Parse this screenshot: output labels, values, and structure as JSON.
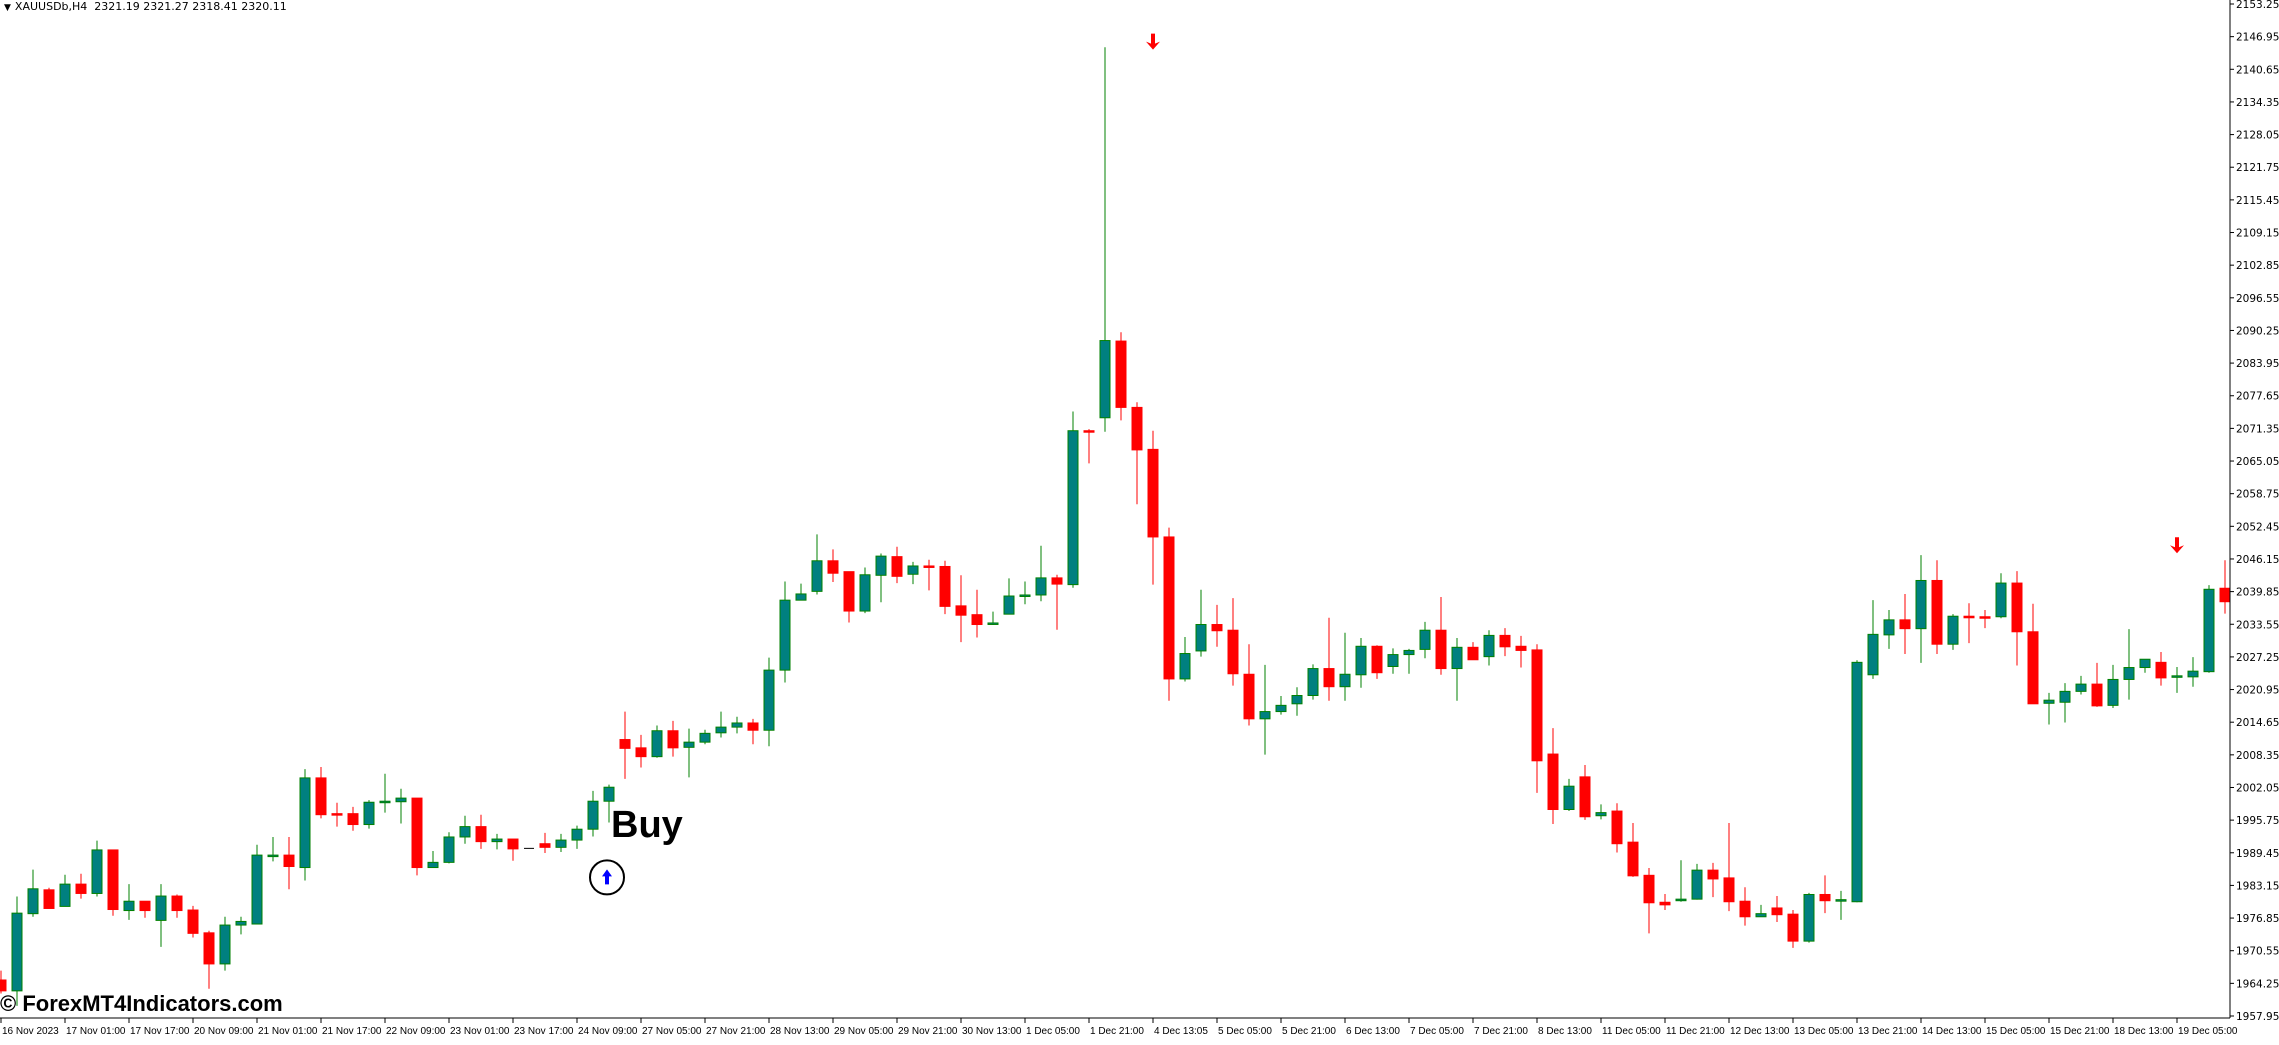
{
  "header": {
    "symbol": "XAUUSDb,H4",
    "ohlc": "2321.19 2321.27 2318.41 2320.11"
  },
  "watermark": "© ForexMT4Indicators.com",
  "buy_label": "Buy",
  "colors": {
    "bull_body": "#008080",
    "bull_outline": "#008000",
    "bear": "#ff0000",
    "doji": "#000000",
    "sell_arrow": "#ff0000",
    "buy_arrow": "#0000ff"
  },
  "chart_data": {
    "type": "candlestick",
    "symbol": "XAUUSDb",
    "timeframe": "H4",
    "ylim": [
      1957.95,
      2153.25
    ],
    "price_ticks": [
      "2153.25",
      "2146.95",
      "2140.65",
      "2134.35",
      "2128.05",
      "2121.75",
      "2115.45",
      "2109.15",
      "2102.85",
      "2096.55",
      "2090.25",
      "2083.95",
      "2077.65",
      "2071.35",
      "2065.05",
      "2058.75",
      "2052.45",
      "2046.15",
      "2039.85",
      "2033.55",
      "2027.25",
      "2020.95",
      "2014.65",
      "2008.35",
      "2002.05",
      "1995.75",
      "1989.45",
      "1983.15",
      "1976.85",
      "1970.55",
      "1964.25",
      "1957.95"
    ],
    "time_labels": [
      "16 Nov 2023",
      "17 Nov 01:00",
      "17 Nov 17:00",
      "20 Nov 09:00",
      "21 Nov 01:00",
      "21 Nov 17:00",
      "22 Nov 09:00",
      "23 Nov 01:00",
      "23 Nov 17:00",
      "24 Nov 09:00",
      "27 Nov 05:00",
      "27 Nov 21:00",
      "28 Nov 13:00",
      "29 Nov 05:00",
      "29 Nov 21:00",
      "30 Nov 13:00",
      "1 Dec 05:00",
      "1 Dec 21:00",
      "4 Dec 13:05",
      "5 Dec 05:00",
      "5 Dec 21:00",
      "6 Dec 13:00",
      "7 Dec 05:00",
      "7 Dec 21:00",
      "8 Dec 13:00",
      "11 Dec 05:00",
      "11 Dec 21:00",
      "12 Dec 13:00",
      "13 Dec 05:00",
      "13 Dec 21:00",
      "14 Dec 13:00",
      "15 Dec 05:00",
      "15 Dec 21:00",
      "18 Dec 13:00",
      "19 Dec 05:00"
    ],
    "time_label_every_n_bars": 4,
    "ohlc_fields": [
      "open",
      "high",
      "low",
      "close"
    ],
    "candles": [
      [
        1964.9,
        1966.7,
        1962.3,
        1962.8
      ],
      [
        1962.8,
        1981.0,
        1959.9,
        1977.8
      ],
      [
        1977.7,
        1986.2,
        1977.1,
        1982.5
      ],
      [
        1982.3,
        1982.7,
        1978.7,
        1978.7
      ],
      [
        1979.1,
        1985.2,
        1979.1,
        1983.4
      ],
      [
        1983.4,
        1985.4,
        1980.6,
        1981.6
      ],
      [
        1981.6,
        1991.8,
        1981.0,
        1990.0
      ],
      [
        1990.0,
        1990.0,
        1977.3,
        1978.5
      ],
      [
        1978.3,
        1983.4,
        1976.5,
        1980.1
      ],
      [
        1980.1,
        1980.1,
        1976.9,
        1978.3
      ],
      [
        1976.4,
        1983.4,
        1971.3,
        1981.1
      ],
      [
        1981.1,
        1981.4,
        1976.9,
        1978.3
      ],
      [
        1978.4,
        1979.2,
        1973.1,
        1973.9
      ],
      [
        1974.0,
        1974.4,
        1963.2,
        1968.0
      ],
      [
        1968.0,
        1977.1,
        1966.7,
        1975.5
      ],
      [
        1975.5,
        1977.1,
        1973.7,
        1976.2
      ],
      [
        1975.7,
        1991.0,
        1975.7,
        1989.0
      ],
      [
        1988.9,
        1992.5,
        1987.8,
        1989.0
      ],
      [
        1989.0,
        1992.5,
        1982.4,
        1986.8
      ],
      [
        1986.6,
        2005.6,
        1984.1,
        2003.9
      ],
      [
        2003.9,
        2006.0,
        1996.1,
        1996.8
      ],
      [
        1997.0,
        1999.1,
        1994.5,
        1996.8
      ],
      [
        1997.0,
        1998.3,
        1993.7,
        1994.9
      ],
      [
        1994.9,
        1999.6,
        1994.1,
        1999.2
      ],
      [
        1999.2,
        2004.7,
        1997.2,
        1999.4
      ],
      [
        1999.3,
        2001.8,
        1995.1,
        2000.0
      ],
      [
        2000.0,
        2000.0,
        1985.1,
        1986.6
      ],
      [
        1986.6,
        1989.8,
        1986.6,
        1987.6
      ],
      [
        1987.6,
        1993.4,
        1987.4,
        1992.5
      ],
      [
        1992.5,
        1996.6,
        1991.2,
        1994.5
      ],
      [
        1994.5,
        1996.8,
        1990.2,
        1991.6
      ],
      [
        1991.6,
        1993.1,
        1990.1,
        1992.1
      ],
      [
        1992.1,
        1992.1,
        1987.9,
        1990.2
      ],
      [
        1990.3,
        1990.3,
        1990.3,
        1990.3
      ],
      [
        1991.2,
        1993.3,
        1989.4,
        1990.5
      ],
      [
        1990.5,
        1993.1,
        1989.6,
        1991.9
      ],
      [
        1991.9,
        1994.7,
        1990.2,
        1994.0
      ],
      [
        1994.0,
        2001.4,
        1992.6,
        1999.4
      ],
      [
        1999.4,
        2002.6,
        1995.3,
        2002.1
      ],
      [
        2011.3,
        2016.7,
        2003.7,
        2009.6
      ],
      [
        2009.7,
        2012.2,
        2005.9,
        2008.0
      ],
      [
        2008.0,
        2014.0,
        2007.8,
        2013.0
      ],
      [
        2013.0,
        2014.9,
        2008.0,
        2009.7
      ],
      [
        2009.8,
        2013.4,
        2004.0,
        2010.8
      ],
      [
        2010.8,
        2013.2,
        2010.4,
        2012.5
      ],
      [
        2012.6,
        2016.7,
        2011.7,
        2013.7
      ],
      [
        2013.7,
        2015.7,
        2012.5,
        2014.5
      ],
      [
        2014.5,
        2015.3,
        2010.4,
        2013.1
      ],
      [
        2013.1,
        2027.1,
        2010.0,
        2024.7
      ],
      [
        2024.7,
        2041.8,
        2022.3,
        2038.2
      ],
      [
        2038.2,
        2041.4,
        2038.2,
        2039.4
      ],
      [
        2039.9,
        2050.9,
        2039.3,
        2045.8
      ],
      [
        2045.8,
        2048.0,
        2041.7,
        2043.4
      ],
      [
        2043.7,
        2043.7,
        2033.9,
        2036.1
      ],
      [
        2036.1,
        2044.5,
        2035.7,
        2043.1
      ],
      [
        2043.0,
        2047.2,
        2037.8,
        2046.7
      ],
      [
        2046.6,
        2048.5,
        2041.5,
        2042.8
      ],
      [
        2043.2,
        2045.6,
        2041.3,
        2044.8
      ],
      [
        2044.8,
        2046.0,
        2040.1,
        2044.6
      ],
      [
        2044.7,
        2045.8,
        2035.5,
        2037.0
      ],
      [
        2037.1,
        2043.0,
        2030.1,
        2035.3
      ],
      [
        2035.4,
        2040.2,
        2031.0,
        2033.5
      ],
      [
        2033.7,
        2036.0,
        2033.4,
        2033.8
      ],
      [
        2035.5,
        2042.4,
        2035.5,
        2039.0
      ],
      [
        2039.1,
        2041.8,
        2037.4,
        2039.2
      ],
      [
        2039.2,
        2048.7,
        2038.0,
        2042.5
      ],
      [
        2042.5,
        2043.1,
        2032.5,
        2041.3
      ],
      [
        2041.2,
        2074.6,
        2040.6,
        2070.9
      ],
      [
        2070.9,
        2071.2,
        2064.6,
        2070.7
      ],
      [
        2073.4,
        2144.9,
        2070.7,
        2088.3
      ],
      [
        2088.2,
        2089.9,
        2072.9,
        2075.4
      ],
      [
        2075.4,
        2076.4,
        2056.7,
        2067.2
      ],
      [
        2067.3,
        2070.9,
        2041.2,
        2050.4
      ],
      [
        2050.4,
        2052.2,
        2018.8,
        2023.0
      ],
      [
        2023.0,
        2031.1,
        2022.5,
        2027.9
      ],
      [
        2028.4,
        2040.2,
        2027.3,
        2033.5
      ],
      [
        2033.5,
        2037.3,
        2029.2,
        2032.3
      ],
      [
        2032.4,
        2038.6,
        2021.7,
        2024.0
      ],
      [
        2023.9,
        2029.7,
        2014.0,
        2015.3
      ],
      [
        2015.3,
        2025.7,
        2008.4,
        2016.7
      ],
      [
        2016.7,
        2019.7,
        2016.1,
        2017.9
      ],
      [
        2018.2,
        2021.4,
        2015.9,
        2019.8
      ],
      [
        2019.8,
        2025.8,
        2019.0,
        2025.0
      ],
      [
        2025.0,
        2034.8,
        2018.8,
        2021.5
      ],
      [
        2021.5,
        2031.9,
        2018.8,
        2023.9
      ],
      [
        2023.8,
        2030.9,
        2021.3,
        2029.3
      ],
      [
        2029.3,
        2029.5,
        2023.0,
        2024.2
      ],
      [
        2025.4,
        2028.9,
        2024.0,
        2027.7
      ],
      [
        2027.7,
        2028.8,
        2024.0,
        2028.5
      ],
      [
        2028.7,
        2034.0,
        2027.0,
        2032.4
      ],
      [
        2032.4,
        2038.8,
        2023.8,
        2025.0
      ],
      [
        2025.0,
        2030.9,
        2018.8,
        2029.1
      ],
      [
        2029.1,
        2030.1,
        2026.7,
        2026.7
      ],
      [
        2027.3,
        2032.4,
        2025.6,
        2031.4
      ],
      [
        2031.4,
        2032.8,
        2027.4,
        2029.2
      ],
      [
        2029.3,
        2031.3,
        2025.2,
        2028.5
      ],
      [
        2028.6,
        2029.7,
        2001.0,
        2007.2
      ],
      [
        2008.5,
        2013.5,
        1995.0,
        1997.8
      ],
      [
        1997.8,
        2003.7,
        1997.5,
        2002.3
      ],
      [
        2004.1,
        2006.4,
        1995.8,
        1996.4
      ],
      [
        1996.6,
        1998.8,
        1995.9,
        1997.2
      ],
      [
        1997.5,
        1999.0,
        1989.5,
        1991.2
      ],
      [
        1991.5,
        1995.2,
        1984.8,
        1985.0
      ],
      [
        1985.1,
        1986.5,
        1973.9,
        1979.8
      ],
      [
        1979.9,
        1981.5,
        1978.4,
        1979.4
      ],
      [
        1980.2,
        1988.0,
        1980.0,
        1980.5
      ],
      [
        1980.5,
        1987.3,
        1980.4,
        1986.1
      ],
      [
        1986.1,
        1987.5,
        1980.9,
        1984.4
      ],
      [
        1984.6,
        1995.2,
        1978.2,
        1980.0
      ],
      [
        1980.1,
        1982.8,
        1975.4,
        1977.1
      ],
      [
        1977.1,
        1979.4,
        1977.1,
        1977.7
      ],
      [
        1978.8,
        1981.1,
        1976.1,
        1977.5
      ],
      [
        1977.6,
        1978.4,
        1971.1,
        1972.4
      ],
      [
        1972.4,
        1981.7,
        1972.1,
        1981.4
      ],
      [
        1981.4,
        1985.1,
        1977.8,
        1980.2
      ],
      [
        1980.3,
        1982.1,
        1976.5,
        1980.4
      ],
      [
        1980.0,
        2026.6,
        1979.9,
        2026.2
      ],
      [
        2023.8,
        2038.2,
        2023.0,
        2031.6
      ],
      [
        2031.5,
        2036.3,
        2028.8,
        2034.4
      ],
      [
        2034.4,
        2039.4,
        2027.8,
        2032.7
      ],
      [
        2032.7,
        2046.9,
        2026.1,
        2042.0
      ],
      [
        2042.0,
        2045.9,
        2027.8,
        2029.7
      ],
      [
        2029.7,
        2035.5,
        2028.6,
        2035.1
      ],
      [
        2035.1,
        2037.6,
        2029.9,
        2034.8
      ],
      [
        2035.0,
        2036.3,
        2032.8,
        2034.8
      ],
      [
        2035.0,
        2043.4,
        2034.7,
        2041.5
      ],
      [
        2041.5,
        2043.8,
        2025.6,
        2032.1
      ],
      [
        2032.1,
        2037.5,
        2018.2,
        2018.2
      ],
      [
        2018.3,
        2020.3,
        2014.2,
        2018.9
      ],
      [
        2018.5,
        2022.2,
        2014.6,
        2020.6
      ],
      [
        2020.6,
        2023.6,
        2020.0,
        2022.0
      ],
      [
        2022.0,
        2026.1,
        2017.6,
        2017.8
      ],
      [
        2017.9,
        2025.7,
        2017.4,
        2022.9
      ],
      [
        2022.9,
        2032.6,
        2019.0,
        2025.2
      ],
      [
        2025.2,
        2026.8,
        2024.2,
        2026.8
      ],
      [
        2026.2,
        2028.2,
        2021.7,
        2023.2
      ],
      [
        2023.4,
        2025.3,
        2020.3,
        2023.6
      ],
      [
        2023.4,
        2027.2,
        2021.5,
        2024.5
      ],
      [
        2024.4,
        2041.1,
        2024.2,
        2040.3
      ],
      [
        2040.5,
        2045.9,
        2035.6,
        2037.9
      ]
    ],
    "signals": [
      {
        "type": "buy",
        "bar": 38,
        "price": 1984.7
      },
      {
        "type": "sell",
        "bar": 72,
        "price": 2146.0
      },
      {
        "type": "sell",
        "bar": 136,
        "price": 2048.8
      }
    ]
  }
}
